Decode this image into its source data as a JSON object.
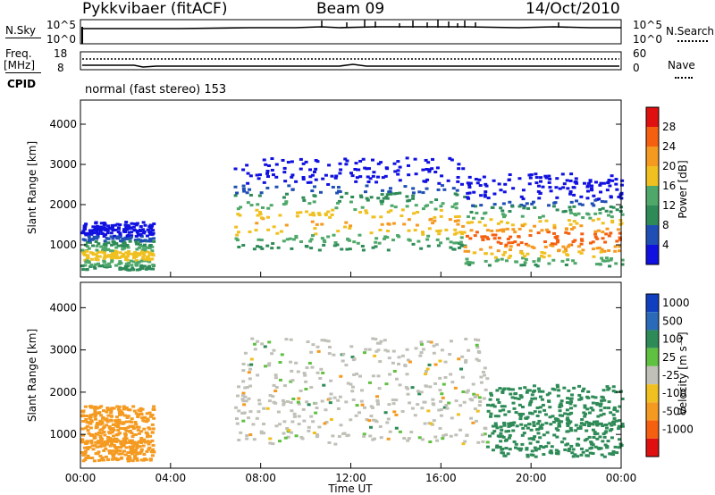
{
  "header": {
    "station": "Pykkvibaer (fitACF)",
    "beam": "Beam 09",
    "date": "14/Oct/2010"
  },
  "nsky_panel": {
    "left_label": "N.Sky",
    "right_label": "N.Search",
    "left_ticks": [
      "10^5",
      "10^0"
    ],
    "right_ticks": [
      "10^5",
      "10^0"
    ]
  },
  "freq_panel": {
    "left_label_line1": "Freq.",
    "left_label_line2": "[MHz]",
    "right_label": "Nave",
    "left_ticks": [
      "18",
      "8"
    ],
    "right_ticks": [
      "60",
      "0"
    ]
  },
  "cpid": {
    "label": "CPID",
    "value": "normal (fast stereo) 153"
  },
  "colors": {
    "power_scale": [
      "#1010e0",
      "#1f4fb5",
      "#2e8b57",
      "#4fa86a",
      "#f0c020",
      "#f59a20",
      "#f56010",
      "#e01010"
    ],
    "velocity_scale": [
      "#1040c0",
      "#2a6ab8",
      "#2e8b57",
      "#60c040",
      "#c0c0b8",
      "#f0c020",
      "#f59a20",
      "#f56010",
      "#e01010"
    ]
  },
  "chart_data": [
    {
      "type": "heatmap",
      "name": "power",
      "ylabel": "Slant Range [km]",
      "yticks": [
        "1000",
        "2000",
        "3000",
        "4000"
      ],
      "ylim": [
        200,
        4600
      ],
      "xlim": [
        "00:00",
        "24:00"
      ],
      "colorbar_label": "Power [dB]",
      "colorbar_ticks": [
        "4",
        "8",
        "12",
        "16",
        "20",
        "24",
        "28"
      ],
      "features": [
        {
          "t_start": 0.0,
          "t_end": 3.2,
          "range_min": 400,
          "range_max": 1600,
          "typical_db": 18
        },
        {
          "t_start": 6.8,
          "t_end": 17.0,
          "range_min": 900,
          "range_max": 3200,
          "typical_db": 20
        },
        {
          "t_start": 17.0,
          "t_end": 24.0,
          "range_min": 500,
          "range_max": 2800,
          "typical_db": 26
        }
      ]
    },
    {
      "type": "heatmap",
      "name": "velocity",
      "ylabel": "Slant Range [km]",
      "yticks": [
        "1000",
        "2000",
        "3000",
        "4000"
      ],
      "ylim": [
        200,
        4600
      ],
      "xlim": [
        "00:00",
        "24:00"
      ],
      "xlabel": "Time UT",
      "xticks": [
        "00:00",
        "04:00",
        "08:00",
        "12:00",
        "16:00",
        "20:00",
        "00:00"
      ],
      "colorbar_label": "Velocity [m s⁻¹]",
      "colorbar_ticks": [
        "1000",
        "500",
        "100",
        "25",
        "-25",
        "-100",
        "-500",
        "-1000"
      ],
      "features": [
        {
          "t_start": 0.0,
          "t_end": 3.2,
          "range_min": 400,
          "range_max": 1700,
          "typical_velocity": -300
        },
        {
          "t_start": 6.8,
          "t_end": 18.0,
          "range_min": 800,
          "range_max": 3300,
          "typical_velocity": 0
        },
        {
          "t_start": 18.0,
          "t_end": 24.0,
          "range_min": 500,
          "range_max": 2200,
          "typical_velocity": 300
        }
      ]
    }
  ]
}
